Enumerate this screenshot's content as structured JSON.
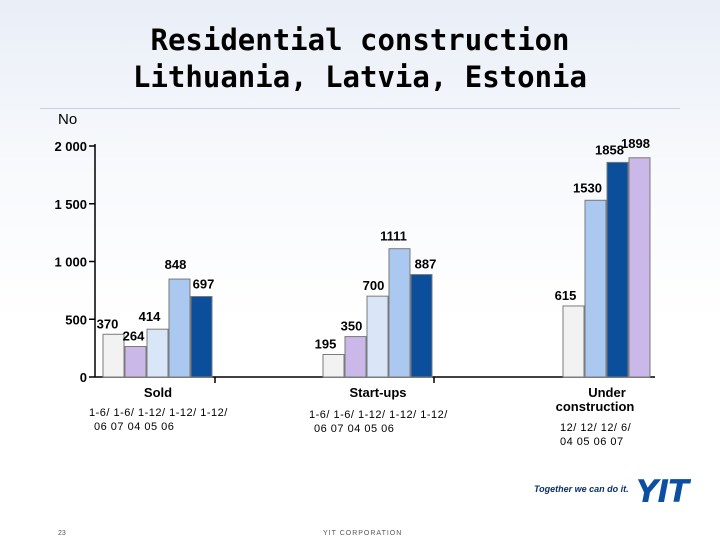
{
  "slide": {
    "title_line1": "Residential construction",
    "title_line2": "Lithuania, Latvia, Estonia",
    "unit_label": "No",
    "slogan": "Together we can do it.",
    "logo": "YIT",
    "page_number": "23",
    "footer": "YIT CORPORATION"
  },
  "period_labels": [
    {
      "row1": "1-6/ 1-6/ 1-12/ 1-12/ 1-12/",
      "row2": "06   07   04    05     06"
    },
    {
      "row1": "1-6/ 1-6/ 1-12/ 1-12/ 1-12/",
      "row2": "06   07   04    05     06"
    },
    {
      "row1": "12/  12/  12/  6/",
      "row2": "04   05   06   07"
    }
  ],
  "chart_data": {
    "type": "bar",
    "ylim": [
      0,
      2000
    ],
    "yticks": [
      0,
      500,
      1000,
      1500,
      2000
    ],
    "ytick_labels": [
      "0",
      "500",
      "1 000",
      "1 500",
      "2 000"
    ],
    "groups": [
      {
        "label": "Sold",
        "values": [
          370,
          264,
          414,
          848,
          697
        ]
      },
      {
        "label": "Start-ups",
        "values": [
          195,
          350,
          700,
          1111,
          887
        ]
      },
      {
        "label": "Under construction",
        "values": [
          615,
          1530,
          1858,
          1898
        ]
      }
    ],
    "colors": {
      "fill_cycle": [
        "#f2f2f2",
        "#c9b8e8",
        "#d9e6f8",
        "#aac8f0",
        "#0b4f9c"
      ],
      "fill_cycle_under_construction": [
        "#f2f2f2",
        "#aac8f0",
        "#0b4f9c",
        "#c9b8e8"
      ],
      "stroke": "#7a7a7a",
      "axis": "#000000"
    },
    "grid": false
  }
}
